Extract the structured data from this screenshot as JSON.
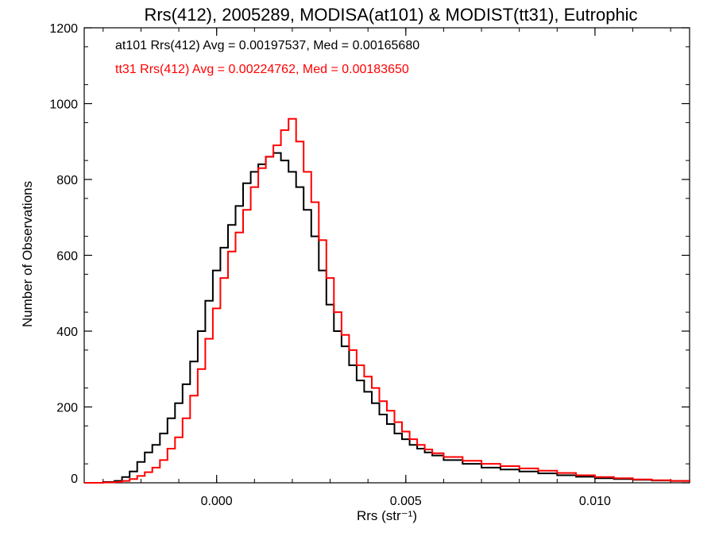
{
  "chart_data": {
    "type": "histogram",
    "title": "Rrs(412), 2005289, MODISA(at101) & MODIST(tt31), Eutrophic",
    "xlabel": "Rrs (str⁻¹)",
    "ylabel": "Number of Observations",
    "xlim": [
      -0.0035,
      0.0125
    ],
    "ylim": [
      0,
      1200
    ],
    "xticks": [
      0.0,
      0.005,
      0.01
    ],
    "xtick_labels": [
      "0.000",
      "0.005",
      "0.010"
    ],
    "yticks": [
      0,
      200,
      400,
      600,
      800,
      1000,
      1200
    ],
    "ytick_labels": [
      "0",
      "200",
      "400",
      "600",
      "800",
      "1000",
      "1200"
    ],
    "annotations": [
      "at101 Rrs(412) Avg = 0.00197537, Med = 0.00165680",
      "tt31 Rrs(412) Avg = 0.00224762, Med = 0.00183650"
    ],
    "series": [
      {
        "color": "#000000",
        "x": [
          -0.0035,
          -0.003,
          -0.0027,
          -0.0025,
          -0.0023,
          -0.0021,
          -0.0019,
          -0.0017,
          -0.0015,
          -0.0013,
          -0.0011,
          -0.0009,
          -0.0007,
          -0.0005,
          -0.0003,
          -0.0001,
          0.0001,
          0.0003,
          0.0005,
          0.0007,
          0.0009,
          0.0011,
          0.0013,
          0.0015,
          0.0017,
          0.0019,
          0.0021,
          0.0023,
          0.0025,
          0.0027,
          0.0029,
          0.0031,
          0.0033,
          0.0035,
          0.0037,
          0.0039,
          0.0041,
          0.0043,
          0.0045,
          0.0047,
          0.0049,
          0.0051,
          0.0053,
          0.0055,
          0.0057,
          0.006,
          0.0065,
          0.007,
          0.0075,
          0.008,
          0.0085,
          0.009,
          0.0095,
          0.01,
          0.0105,
          0.011,
          0.0115,
          0.012,
          0.0125
        ],
        "y": [
          0,
          2,
          5,
          15,
          30,
          55,
          80,
          100,
          130,
          170,
          210,
          260,
          320,
          400,
          480,
          560,
          620,
          680,
          730,
          790,
          820,
          840,
          860,
          870,
          850,
          820,
          780,
          720,
          650,
          560,
          470,
          400,
          360,
          310,
          270,
          240,
          210,
          180,
          155,
          130,
          115,
          100,
          90,
          80,
          72,
          60,
          50,
          40,
          35,
          30,
          25,
          20,
          16,
          12,
          10,
          8,
          6,
          5,
          3
        ]
      },
      {
        "color": "#ff0000",
        "x": [
          -0.0035,
          -0.003,
          -0.0027,
          -0.0025,
          -0.0023,
          -0.0021,
          -0.0019,
          -0.0017,
          -0.0015,
          -0.0013,
          -0.0011,
          -0.0009,
          -0.0007,
          -0.0005,
          -0.0003,
          -0.0001,
          0.0001,
          0.0003,
          0.0005,
          0.0007,
          0.0009,
          0.0011,
          0.0013,
          0.0015,
          0.0017,
          0.0019,
          0.0021,
          0.0023,
          0.0025,
          0.0027,
          0.0029,
          0.0031,
          0.0033,
          0.0035,
          0.0037,
          0.0039,
          0.0041,
          0.0043,
          0.0045,
          0.0047,
          0.0049,
          0.0051,
          0.0053,
          0.0055,
          0.0057,
          0.006,
          0.0065,
          0.007,
          0.0075,
          0.008,
          0.0085,
          0.009,
          0.0095,
          0.01,
          0.0105,
          0.011,
          0.0115,
          0.012,
          0.0125
        ],
        "y": [
          0,
          1,
          2,
          5,
          10,
          18,
          28,
          40,
          60,
          90,
          120,
          170,
          230,
          300,
          380,
          460,
          540,
          610,
          660,
          720,
          780,
          830,
          860,
          890,
          930,
          960,
          900,
          820,
          740,
          640,
          540,
          450,
          390,
          350,
          310,
          280,
          250,
          215,
          190,
          160,
          135,
          115,
          100,
          88,
          78,
          68,
          58,
          50,
          44,
          38,
          32,
          26,
          20,
          15,
          12,
          9,
          7,
          5,
          4
        ]
      }
    ]
  }
}
